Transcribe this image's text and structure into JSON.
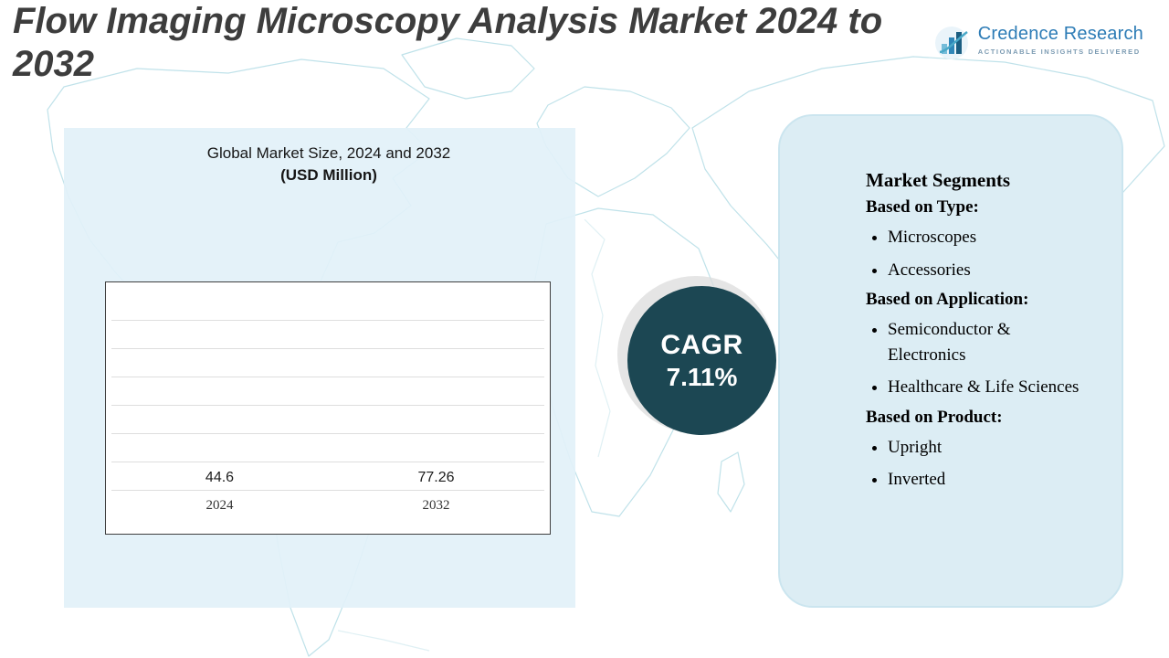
{
  "title": "Flow Imaging Microscopy Analysis Market 2024 to 2032",
  "logo": {
    "name": "Credence Research",
    "tagline": "Actionable Insights Delivered"
  },
  "chart_panel": {
    "heading_line1": "Global Market Size, 2024 and 2032",
    "heading_line2": "(USD Million)"
  },
  "cagr": {
    "label": "CAGR",
    "value": "7.11%"
  },
  "segments": {
    "heading": "Market Segments",
    "groups": [
      {
        "label": "Based on Type:",
        "items": [
          "Microscopes",
          "Accessories"
        ]
      },
      {
        "label": "Based on Application:",
        "items": [
          "Semiconductor & Electronics",
          "Healthcare & Life Sciences"
        ]
      },
      {
        "label": "Based on Product:",
        "items": [
          "Upright",
          "Inverted"
        ]
      }
    ]
  },
  "chart_data": {
    "type": "bar",
    "title": "Global Market Size, 2024 and 2032 (USD Million)",
    "categories": [
      "2024",
      "2032"
    ],
    "values": [
      44.6,
      77.26
    ],
    "xlabel": "",
    "ylabel": "",
    "ylim": [
      0,
      90
    ],
    "grid": true,
    "legend": false,
    "bar_colors": [
      "#3aa39e",
      "#1e7fb5"
    ]
  },
  "colors": {
    "accent_dark_teal": "#1c4753",
    "panel_blue": "#dcedf4",
    "map_line": "#b5dde6",
    "title_gray": "#3d3d3d",
    "logo_blue": "#2d7cb6"
  }
}
